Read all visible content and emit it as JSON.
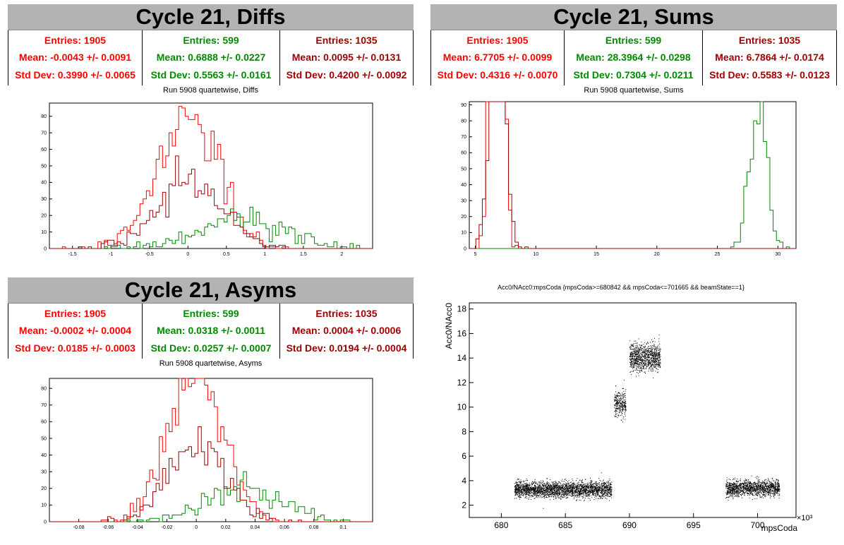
{
  "panels": {
    "diffs": {
      "title": "Cycle 21, Diffs",
      "subtitle": "Run 5908 quartetwise, Diffs",
      "stats": [
        {
          "entries": "Entries: 1905",
          "mean": "Mean: -0.0043 +/- 0.0091",
          "std": "Std Dev: 0.3990 +/- 0.0065"
        },
        {
          "entries": "Entries: 599",
          "mean": "Mean: 0.6888 +/- 0.0227",
          "std": "Std Dev: 0.5563 +/- 0.0161"
        },
        {
          "entries": "Entries: 1035",
          "mean": "Mean: 0.0095 +/- 0.0131",
          "std": "Std Dev: 0.4200 +/- 0.0092"
        }
      ]
    },
    "sums": {
      "title": "Cycle 21, Sums",
      "subtitle": "Run 5908 quartetwise, Sums",
      "stats": [
        {
          "entries": "Entries: 1905",
          "mean": "Mean: 6.7705 +/- 0.0099",
          "std": "Std Dev: 0.4316 +/- 0.0070"
        },
        {
          "entries": "Entries: 599",
          "mean": "Mean: 28.3964 +/- 0.0298",
          "std": "Std Dev: 0.7304 +/- 0.0211"
        },
        {
          "entries": "Entries: 1035",
          "mean": "Mean: 6.7864 +/- 0.0174",
          "std": "Std Dev: 0.5583 +/- 0.0123"
        }
      ]
    },
    "asyms": {
      "title": "Cycle 21, Asyms",
      "subtitle": "Run 5908 quartetwise, Asyms",
      "stats": [
        {
          "entries": "Entries: 1905",
          "mean": "Mean: -0.0002 +/- 0.0004",
          "std": "Std Dev: 0.0185 +/- 0.0003"
        },
        {
          "entries": "Entries: 599",
          "mean": "Mean: 0.0318 +/- 0.0011",
          "std": "Std Dev: 0.0257 +/- 0.0007"
        },
        {
          "entries": "Entries: 1035",
          "mean": "Mean: 0.0004 +/- 0.0006",
          "std": "Std Dev: 0.0194 +/- 0.0004"
        }
      ]
    },
    "scatter": {
      "title": "Acc0/NAcc0:mpsCoda {mpsCoda>=680842 && mpsCoda<=701665 && beamState==1}",
      "ylabel": "Acc0/NAcc0",
      "xlabel": "mpsCoda",
      "exponent": "×10³"
    }
  },
  "colors": {
    "series1": "#ff0000",
    "series2": "#008a00",
    "series3": "#a00000",
    "black": "#000000"
  },
  "chart_data": [
    {
      "id": "diffs",
      "type": "histogram",
      "xlim": [
        -1.8,
        2.4
      ],
      "ylim": [
        0,
        88
      ],
      "xticks": [
        -1.5,
        -1,
        -0.5,
        0,
        0.5,
        1,
        1.5,
        2
      ],
      "yticks": [
        0,
        10,
        20,
        30,
        40,
        50,
        60,
        70,
        80
      ],
      "series": [
        {
          "color": "series1",
          "mean": -0.0043,
          "std": 0.399,
          "entries": 1905
        },
        {
          "color": "series2",
          "mean": 0.6888,
          "std": 0.5563,
          "entries": 599
        },
        {
          "color": "series3",
          "mean": 0.0095,
          "std": 0.42,
          "entries": 1035
        }
      ]
    },
    {
      "id": "sums",
      "type": "histogram",
      "xlim": [
        4.5,
        31.5
      ],
      "ylim": [
        0,
        92
      ],
      "xticks": [
        5,
        10,
        15,
        20,
        25,
        30
      ],
      "yticks": [
        0,
        10,
        20,
        30,
        40,
        50,
        60,
        70,
        80,
        90
      ],
      "series": [
        {
          "color": "series1",
          "mean": 6.7705,
          "std": 0.4316,
          "entries": 1905
        },
        {
          "color": "series2",
          "mean": 28.3964,
          "std": 0.7304,
          "entries": 599
        },
        {
          "color": "series3",
          "mean": 6.7864,
          "std": 0.5583,
          "entries": 1035
        }
      ]
    },
    {
      "id": "asyms",
      "type": "histogram",
      "xlim": [
        -0.1,
        0.12
      ],
      "ylim": [
        0,
        86
      ],
      "xticks": [
        -0.08,
        -0.06,
        -0.04,
        -0.02,
        0,
        0.02,
        0.04,
        0.06,
        0.08,
        0.1
      ],
      "yticks": [
        0,
        10,
        20,
        30,
        40,
        50,
        60,
        70,
        80
      ],
      "series": [
        {
          "color": "series1",
          "mean": -0.0002,
          "std": 0.0185,
          "entries": 1905
        },
        {
          "color": "series2",
          "mean": 0.0318,
          "std": 0.0257,
          "entries": 599
        },
        {
          "color": "series3",
          "mean": 0.0004,
          "std": 0.0194,
          "entries": 1035
        }
      ]
    },
    {
      "id": "scatter",
      "type": "scatter",
      "xlim": [
        677.5,
        703
      ],
      "ylim": [
        1,
        18.5
      ],
      "xticks": [
        680,
        685,
        690,
        695,
        700
      ],
      "yticks": [
        2,
        4,
        6,
        8,
        10,
        12,
        14,
        16,
        18
      ],
      "clusters": [
        {
          "x": [
            681,
            688.6
          ],
          "y_mean": 3.3,
          "y_std": 0.32,
          "n": 2600
        },
        {
          "x": [
            688.8,
            689.7
          ],
          "y_mean": 10.3,
          "y_std": 0.5,
          "n": 300
        },
        {
          "x": [
            690,
            692.4
          ],
          "y_mean": 14.1,
          "y_std": 0.55,
          "n": 1000
        },
        {
          "x": [
            697.5,
            701.7
          ],
          "y_mean": 3.4,
          "y_std": 0.32,
          "n": 1400
        }
      ]
    }
  ]
}
